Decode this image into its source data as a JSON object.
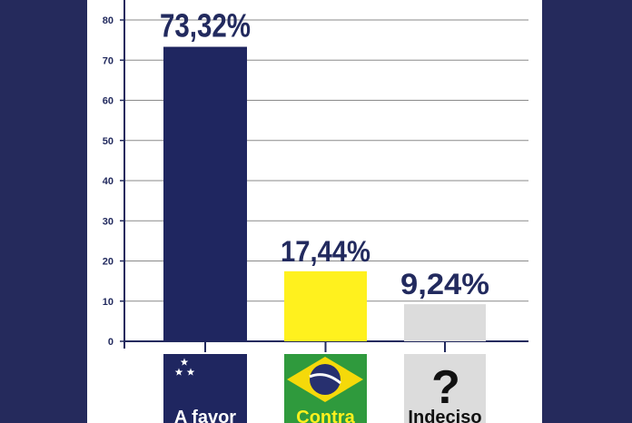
{
  "colors": {
    "background_panel": "#252a5c",
    "navy": "#1f2660",
    "yellow": "#fff11e",
    "gray": "#dcdcdc",
    "grid": "#8a8a8a",
    "brazil_green": "#2f9a3d",
    "brazil_yellow": "#f5d90a",
    "brazil_blue": "#27306f",
    "white": "#ffffff",
    "text_dark": "#222a5e",
    "text_black": "#111111"
  },
  "chart_data": {
    "type": "bar",
    "categories": [
      "A favor",
      "Contra",
      "Indeciso"
    ],
    "values": [
      73.32,
      17.44,
      9.24
    ],
    "data_labels": [
      "73,32%",
      "17,44%",
      "9,24%"
    ],
    "bar_colors": [
      "#1f2660",
      "#fff11e",
      "#dcdcdc"
    ],
    "ylim": [
      0,
      80
    ],
    "yticks": [
      0,
      10,
      20,
      30,
      40,
      50,
      60,
      70,
      80
    ],
    "grid": true,
    "legend": "none"
  },
  "categories_meta": [
    {
      "icon": "flag-stars-icon",
      "label_color": "#ffffff",
      "panel_color": "#1f2660"
    },
    {
      "icon": "brazil-flag-icon",
      "label_color": "#fff11e",
      "panel_color": "#2f9a3d"
    },
    {
      "icon": "question-mark-icon",
      "label_color": "#111111",
      "panel_color": "#dcdcdc"
    }
  ],
  "question_glyph": "?"
}
